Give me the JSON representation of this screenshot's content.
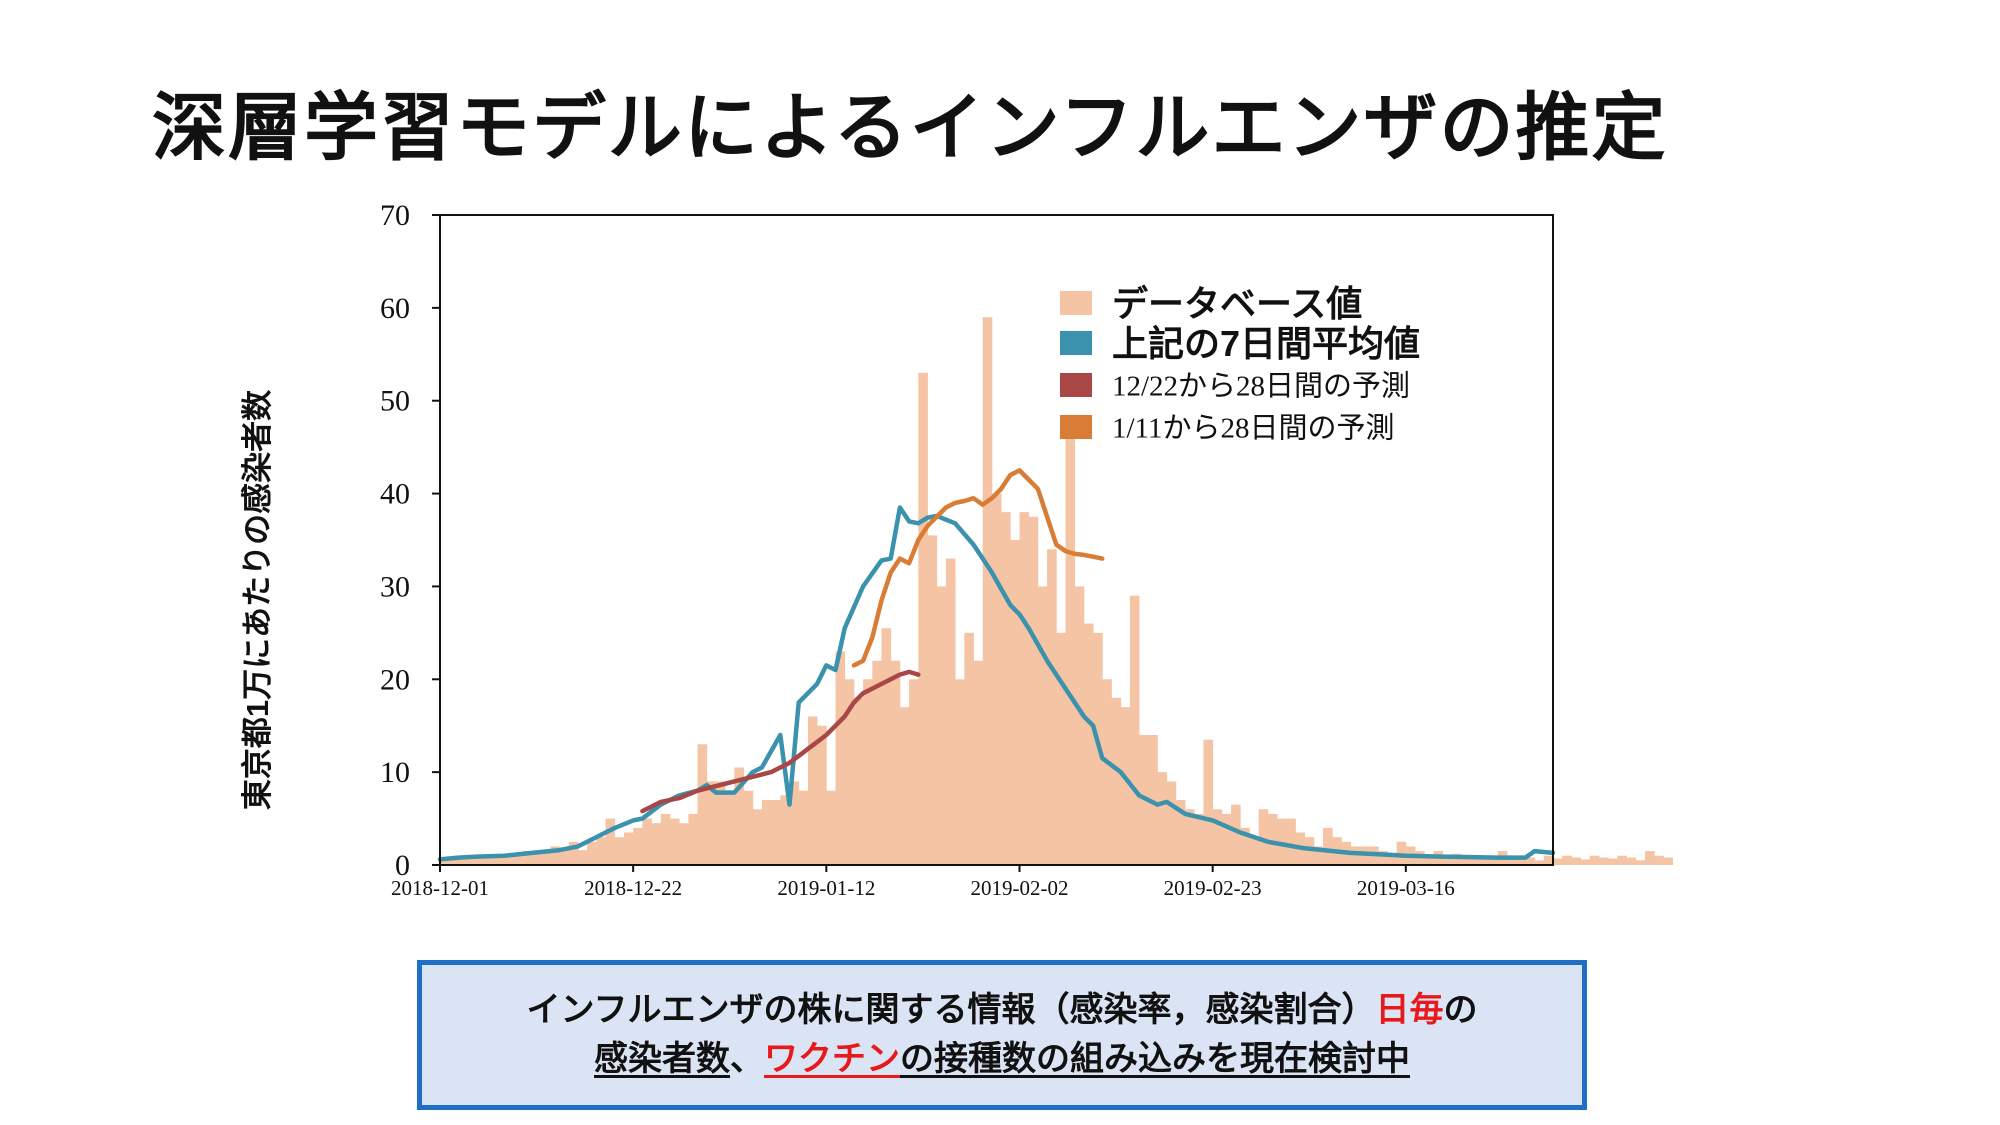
{
  "title": "深層学習モデルによるインフルエンザの推定",
  "chart_data": {
    "type": "bar+line",
    "ylabel": "東京都1万にあたりの感染者数",
    "xlabel": "",
    "ylim": [
      0,
      70
    ],
    "yticks": [
      "0",
      "10",
      "20",
      "30",
      "40",
      "50",
      "60",
      "70"
    ],
    "x_range": [
      "2018-12-01",
      "2019-04-01"
    ],
    "xticks": [
      "2018-12-01",
      "2018-12-22",
      "2019-01-12",
      "2019-02-02",
      "2019-02-23",
      "2019-03-16"
    ],
    "legend_position": "top-right",
    "legend": [
      {
        "label": "データベース値",
        "color": "#f5c4a5",
        "kind": "bar"
      },
      {
        "label": "上記の7日間平均値",
        "color": "#3a92ad",
        "kind": "line"
      },
      {
        "label": "12/22から28日間の予測",
        "color": "#a84745",
        "kind": "line"
      },
      {
        "label": "1/11から28日間の予測",
        "color": "#d97c35",
        "kind": "line"
      }
    ],
    "bars_daily": {
      "start": "2018-12-01",
      "values": [
        0.5,
        0.8,
        1,
        0.7,
        1,
        1,
        0.8,
        1.2,
        1,
        1.5,
        1.2,
        1.6,
        2,
        1.8,
        2.5,
        1.6,
        2.5,
        3,
        5,
        3,
        3.5,
        4,
        5,
        4.5,
        5.5,
        5,
        4.5,
        5.5,
        13,
        9,
        9,
        8,
        10.5,
        8,
        6,
        7,
        7,
        7.5,
        9,
        8,
        16,
        15,
        8,
        23,
        20,
        18,
        20,
        22,
        25.5,
        22,
        17,
        20,
        53,
        35.5,
        30,
        33,
        20,
        25,
        22,
        59,
        40,
        38,
        35,
        38,
        37.5,
        30,
        34,
        25,
        47,
        30,
        26,
        25,
        20,
        18,
        17,
        29,
        14,
        14,
        10,
        9,
        7,
        6,
        5.5,
        13.5,
        6,
        5.5,
        6.5,
        4,
        3,
        6,
        5.5,
        5,
        5,
        3.5,
        3,
        2,
        4,
        3,
        2.5,
        2,
        2,
        2,
        1.5,
        1,
        2.5,
        2,
        1.5,
        1,
        1.5,
        1,
        1.2,
        1,
        1,
        1,
        1,
        1.5,
        0.8,
        1,
        0.8,
        0.5,
        1,
        0.7,
        1,
        0.8,
        0.6,
        1,
        0.8,
        0.7,
        1,
        0.8,
        0.5,
        1.5,
        1,
        0.8
      ],
      "name": "データベース値"
    },
    "series": [
      {
        "name": "上記の7日間平均値",
        "color": "#3a92ad",
        "points": [
          [
            "2018-12-01",
            0.6
          ],
          [
            "2018-12-03",
            0.8
          ],
          [
            "2018-12-05",
            0.9
          ],
          [
            "2018-12-08",
            1.0
          ],
          [
            "2018-12-11",
            1.3
          ],
          [
            "2018-12-14",
            1.6
          ],
          [
            "2018-12-16",
            2.0
          ],
          [
            "2018-12-18",
            3.0
          ],
          [
            "2018-12-20",
            4.0
          ],
          [
            "2018-12-22",
            4.8
          ],
          [
            "2018-12-23",
            5.0
          ],
          [
            "2018-12-25",
            6.5
          ],
          [
            "2018-12-27",
            7.5
          ],
          [
            "2018-12-29",
            8.0
          ],
          [
            "2018-12-30",
            8.6
          ],
          [
            "2018-12-31",
            7.8
          ],
          [
            "2019-01-02",
            7.8
          ],
          [
            "2019-01-04",
            10.0
          ],
          [
            "2019-01-05",
            10.5
          ],
          [
            "2019-01-07",
            14.0
          ],
          [
            "2019-01-08",
            6.5
          ],
          [
            "2019-01-09",
            17.5
          ],
          [
            "2019-01-11",
            19.5
          ],
          [
            "2019-01-12",
            21.5
          ],
          [
            "2019-01-13",
            21.0
          ],
          [
            "2019-01-14",
            25.5
          ],
          [
            "2019-01-16",
            30.0
          ],
          [
            "2019-01-18",
            32.8
          ],
          [
            "2019-01-19",
            33.0
          ],
          [
            "2019-01-20",
            38.5
          ],
          [
            "2019-01-21",
            37.0
          ],
          [
            "2019-01-22",
            36.8
          ],
          [
            "2019-01-23",
            37.4
          ],
          [
            "2019-01-24",
            37.6
          ],
          [
            "2019-01-26",
            36.8
          ],
          [
            "2019-01-28",
            34.5
          ],
          [
            "2019-01-30",
            31.5
          ],
          [
            "2019-02-01",
            28.0
          ],
          [
            "2019-02-02",
            27.0
          ],
          [
            "2019-02-03",
            25.5
          ],
          [
            "2019-02-05",
            22.0
          ],
          [
            "2019-02-07",
            19.0
          ],
          [
            "2019-02-09",
            16.0
          ],
          [
            "2019-02-10",
            15.0
          ],
          [
            "2019-02-11",
            11.5
          ],
          [
            "2019-02-13",
            10.0
          ],
          [
            "2019-02-15",
            7.5
          ],
          [
            "2019-02-17",
            6.5
          ],
          [
            "2019-02-18",
            6.8
          ],
          [
            "2019-02-20",
            5.5
          ],
          [
            "2019-02-23",
            4.8
          ],
          [
            "2019-02-26",
            3.5
          ],
          [
            "2019-03-01",
            2.5
          ],
          [
            "2019-03-05",
            1.8
          ],
          [
            "2019-03-10",
            1.3
          ],
          [
            "2019-03-16",
            1.0
          ],
          [
            "2019-03-20",
            0.9
          ],
          [
            "2019-03-26",
            0.8
          ],
          [
            "2019-03-29",
            0.8
          ],
          [
            "2019-03-30",
            1.5
          ],
          [
            "2019-04-01",
            1.3
          ]
        ]
      },
      {
        "name": "12/22から28日間の予測",
        "color": "#a84745",
        "points": [
          [
            "2018-12-23",
            5.8
          ],
          [
            "2018-12-25",
            6.8
          ],
          [
            "2018-12-27",
            7.2
          ],
          [
            "2018-12-29",
            8.0
          ],
          [
            "2018-12-31",
            8.5
          ],
          [
            "2019-01-02",
            9.0
          ],
          [
            "2019-01-04",
            9.5
          ],
          [
            "2019-01-06",
            10.0
          ],
          [
            "2019-01-08",
            11.0
          ],
          [
            "2019-01-10",
            12.5
          ],
          [
            "2019-01-12",
            14.0
          ],
          [
            "2019-01-14",
            16.0
          ],
          [
            "2019-01-15",
            17.5
          ],
          [
            "2019-01-16",
            18.5
          ],
          [
            "2019-01-17",
            19.0
          ],
          [
            "2019-01-19",
            20.0
          ],
          [
            "2019-01-20",
            20.5
          ],
          [
            "2019-01-21",
            20.8
          ],
          [
            "2019-01-22",
            20.5
          ]
        ]
      },
      {
        "name": "1/11から28日間の予測",
        "color": "#d97c35",
        "points": [
          [
            "2019-01-15",
            21.5
          ],
          [
            "2019-01-16",
            22.0
          ],
          [
            "2019-01-17",
            24.5
          ],
          [
            "2019-01-18",
            28.5
          ],
          [
            "2019-01-19",
            31.5
          ],
          [
            "2019-01-20",
            33.0
          ],
          [
            "2019-01-21",
            32.5
          ],
          [
            "2019-01-22",
            35.0
          ],
          [
            "2019-01-23",
            36.5
          ],
          [
            "2019-01-24",
            37.5
          ],
          [
            "2019-01-25",
            38.5
          ],
          [
            "2019-01-26",
            39.0
          ],
          [
            "2019-01-27",
            39.2
          ],
          [
            "2019-01-28",
            39.5
          ],
          [
            "2019-01-29",
            38.8
          ],
          [
            "2019-01-30",
            39.5
          ],
          [
            "2019-01-31",
            40.5
          ],
          [
            "2019-02-01",
            42.0
          ],
          [
            "2019-02-02",
            42.5
          ],
          [
            "2019-02-03",
            41.5
          ],
          [
            "2019-02-04",
            40.5
          ],
          [
            "2019-02-05",
            37.5
          ],
          [
            "2019-02-06",
            34.5
          ],
          [
            "2019-02-07",
            33.8
          ],
          [
            "2019-02-08",
            33.5
          ],
          [
            "2019-02-09",
            33.4
          ],
          [
            "2019-02-10",
            33.2
          ],
          [
            "2019-02-11",
            33.0
          ]
        ]
      }
    ]
  },
  "note": {
    "line1_a": "インフルエンザの株に関する情報（感染率，感染割合）",
    "line1_b": "日毎",
    "line1_c": "の",
    "line2_a": "感染者数",
    "line2_b": "、",
    "line2_c": "ワクチン",
    "line2_d": "の",
    "line2_e": "接種数の組み込みを現在検討中"
  }
}
